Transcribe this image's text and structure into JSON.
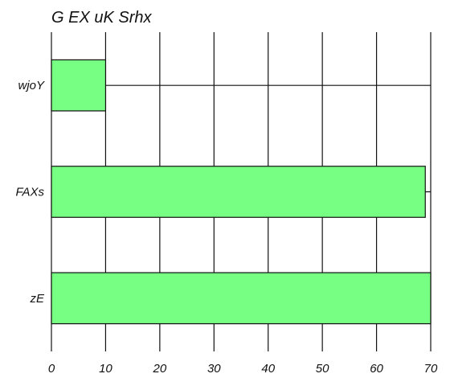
{
  "chart_data": {
    "type": "bar",
    "orientation": "horizontal",
    "title": "G EX uK Srhx",
    "xlabel": "",
    "ylabel": "",
    "categories": [
      "wjoY",
      "FAXs",
      "zE"
    ],
    "values": [
      10,
      69,
      70
    ],
    "xlim": [
      0,
      70
    ],
    "xticks": [
      0,
      10,
      20,
      30,
      40,
      50,
      60,
      70
    ],
    "grid": true,
    "legend": "none",
    "colors": {
      "bar_fill": "#76ff83",
      "bar_stroke": "#111111",
      "grid": "#111111"
    }
  }
}
